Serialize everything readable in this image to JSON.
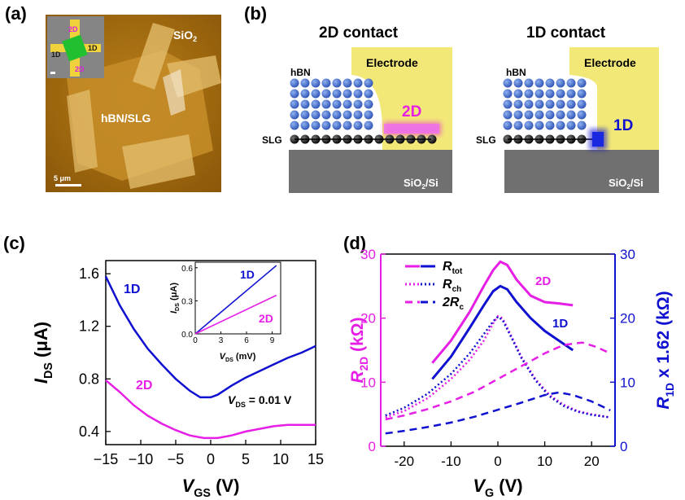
{
  "panels": {
    "a": {
      "label": "(a)",
      "sio2": "SiO",
      "sio2_sub": "2",
      "hbn_slg": "hBN/SLG",
      "scale": "5 μm",
      "inset": {
        "top": "2D",
        "left": "1D",
        "right": "1D",
        "bottom": "2D"
      }
    },
    "b": {
      "label": "(b)",
      "left_title": "2D contact",
      "right_title": "1D contact",
      "electrode": "Electrode",
      "hbn": "hBN",
      "slg": "SLG",
      "substrate": "SiO",
      "substrate_sub": "2",
      "substrate_tail": "/Si",
      "tag_2d": "2D",
      "tag_1d": "1D"
    },
    "c": {
      "label": "(c)"
    },
    "d": {
      "label": "(d)"
    }
  },
  "colors": {
    "blue": "#1010d0",
    "magenta": "#e61ee6",
    "gold": "#f2e878",
    "gray": "#707070",
    "sphere": "#3a64c8"
  },
  "chart_data": [
    {
      "type": "line",
      "xlabel": "V",
      "xlabel_sub": "GS",
      "xlabel_unit": " (V)",
      "ylabel": "I",
      "ylabel_sub": "DS",
      "ylabel_unit": " (μA)",
      "xlim": [
        -15,
        15
      ],
      "ylim": [
        0.3,
        1.7
      ],
      "xticks": [
        "−15",
        "−10",
        "−5",
        "0",
        "5",
        "10",
        "15"
      ],
      "yticks": [
        "0.4",
        "0.8",
        "1.2",
        "1.6"
      ],
      "annotation": {
        "pre": "V",
        "sub": "DS",
        "post": " = 0.01 V"
      },
      "series": [
        {
          "name": "1D",
          "color": "#1010d0",
          "x": [
            -15,
            -13,
            -11,
            -9,
            -7,
            -5,
            -3,
            -1.5,
            0,
            1,
            3,
            5,
            7,
            9,
            11,
            13,
            15
          ],
          "y": [
            1.58,
            1.36,
            1.18,
            1.03,
            0.91,
            0.8,
            0.71,
            0.66,
            0.66,
            0.68,
            0.75,
            0.81,
            0.86,
            0.91,
            0.96,
            1.0,
            1.05
          ]
        },
        {
          "name": "2D",
          "color": "#e61ee6",
          "x": [
            -15,
            -13,
            -11,
            -9,
            -7,
            -5,
            -3,
            -1,
            1,
            3,
            5,
            7,
            9,
            11,
            13,
            15
          ],
          "y": [
            0.79,
            0.7,
            0.6,
            0.52,
            0.46,
            0.41,
            0.37,
            0.35,
            0.35,
            0.37,
            0.4,
            0.42,
            0.44,
            0.45,
            0.45,
            0.45
          ]
        }
      ]
    },
    {
      "type": "line",
      "xlabel": "V",
      "xlabel_sub": "DS",
      "xlabel_unit": " (mV)",
      "ylabel": "I",
      "ylabel_sub": "DS",
      "ylabel_unit": " (μA)",
      "xlim": [
        0,
        10
      ],
      "ylim": [
        0,
        0.65
      ],
      "xticks": [
        "0",
        "3",
        "6",
        "9"
      ],
      "yticks": [
        "0.0",
        "0.3",
        "0.6"
      ],
      "series": [
        {
          "name": "1D",
          "color": "#1010d0",
          "x": [
            0,
            9.5
          ],
          "y": [
            0,
            0.62
          ]
        },
        {
          "name": "2D",
          "color": "#e61ee6",
          "x": [
            0,
            9.5
          ],
          "y": [
            0,
            0.35
          ]
        }
      ]
    },
    {
      "type": "line",
      "xlabel": "V",
      "xlabel_sub": "G",
      "xlabel_unit": " (V)",
      "ylabel_left": "R",
      "ylabel_left_sub": "2D",
      "ylabel_left_unit": " (kΩ)",
      "ylabel_right": "R",
      "ylabel_right_sub": "1D",
      "ylabel_right_unit": " x 1.62 (kΩ)",
      "xlim": [
        -25,
        25
      ],
      "ylim": [
        0,
        30
      ],
      "xticks": [
        "-20",
        "-10",
        "0",
        "10",
        "20"
      ],
      "yticks": [
        "0",
        "10",
        "20",
        "30"
      ],
      "legend": [
        {
          "pre": "R",
          "sub": "tot",
          "style": "solid"
        },
        {
          "pre": "R",
          "sub": "ch",
          "style": "dotted"
        },
        {
          "pre": "2R",
          "sub": "c",
          "style": "dashed"
        }
      ],
      "curve_labels": [
        "2D",
        "1D"
      ],
      "series": [
        {
          "name": "2D",
          "color": "#e61ee6",
          "style": "solid",
          "x": [
            -14,
            -10,
            -6,
            -3,
            -1,
            0.5,
            2,
            4,
            7,
            10,
            13,
            16
          ],
          "y": [
            13,
            16.5,
            21,
            25,
            27.5,
            28.8,
            28.3,
            26,
            23.5,
            22.5,
            22.3,
            22
          ]
        },
        {
          "name": "1D",
          "color": "#1010d0",
          "style": "solid",
          "x": [
            -14,
            -10,
            -6,
            -3,
            -1,
            0.5,
            2,
            4,
            7,
            10,
            13,
            16
          ],
          "y": [
            10.5,
            14,
            18.5,
            22,
            24.2,
            25,
            24.5,
            22.5,
            20,
            18,
            16.5,
            15
          ]
        },
        {
          "name": "2D",
          "color": "#e61ee6",
          "style": "dotted",
          "x": [
            -24,
            -20,
            -15,
            -10,
            -6,
            -3,
            -1,
            0,
            1,
            3,
            5,
            8,
            11,
            14,
            17,
            20,
            24
          ],
          "y": [
            4.5,
            5.5,
            7.5,
            10.5,
            13.5,
            16.5,
            19.2,
            20.3,
            20,
            17,
            14,
            10.5,
            8,
            6.5,
            5.5,
            5,
            4.5
          ]
        },
        {
          "name": "1D",
          "color": "#1010d0",
          "style": "dotted",
          "x": [
            -24,
            -20,
            -15,
            -10,
            -6,
            -3,
            -1,
            0,
            1,
            3,
            5,
            8,
            11,
            14,
            17,
            20,
            24
          ],
          "y": [
            4.8,
            6,
            8.2,
            11.3,
            14.5,
            17.5,
            19.5,
            20.2,
            19.7,
            16.8,
            13.8,
            10.3,
            7.8,
            6.3,
            5.4,
            4.9,
            4.5
          ]
        },
        {
          "name": "2D",
          "color": "#e61ee6",
          "style": "dashed",
          "x": [
            -24,
            -20,
            -15,
            -10,
            -5,
            0,
            5,
            10,
            14,
            18,
            21,
            24
          ],
          "y": [
            4.2,
            4.8,
            5.8,
            7,
            8.5,
            10.5,
            12.5,
            14.5,
            15.8,
            16.2,
            15.5,
            14.5
          ]
        },
        {
          "name": "1D",
          "color": "#1010d0",
          "style": "dashed",
          "x": [
            -24,
            -20,
            -15,
            -10,
            -5,
            0,
            5,
            10,
            13,
            16,
            20,
            24
          ],
          "y": [
            2,
            2.4,
            3,
            3.7,
            4.6,
            5.7,
            6.8,
            8,
            8.4,
            8,
            7,
            5.6
          ]
        }
      ]
    }
  ]
}
